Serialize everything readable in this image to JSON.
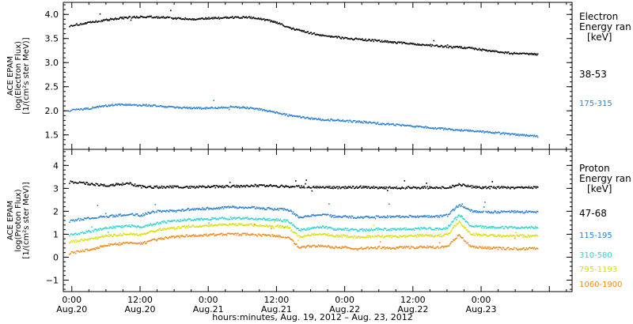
{
  "chart_data": [
    {
      "type": "scatter",
      "ylabel_lines": [
        "ACE EPAM",
        "log(Electron Flux)",
        "[1/(cm²s ster MeV)]"
      ],
      "ylim": [
        1.2,
        4.25
      ],
      "yticks": [
        1.5,
        2.0,
        2.5,
        3.0,
        3.5,
        4.0
      ],
      "ytick_labels": [
        "1.5",
        "2.0",
        "2.5",
        "3.0",
        "3.5",
        "4.0"
      ],
      "legend_title": [
        "Electron",
        "Energy ran",
        "[keV]"
      ],
      "series": [
        {
          "name": "38-53",
          "color": "#000000",
          "x": [
            -0.5,
            2,
            4,
            6,
            8,
            10,
            12,
            14,
            16,
            18,
            20,
            22,
            24,
            26,
            28,
            30,
            32,
            34,
            36,
            38,
            40,
            42,
            44,
            46,
            48,
            50,
            52,
            54,
            56,
            58,
            60,
            62,
            64,
            66,
            68,
            70,
            72,
            74,
            76,
            78,
            80,
            82
          ],
          "y": [
            3.78,
            3.82,
            3.86,
            3.9,
            3.93,
            3.95,
            3.96,
            3.96,
            3.95,
            3.93,
            3.92,
            3.91,
            3.93,
            3.94,
            3.95,
            3.95,
            3.94,
            3.9,
            3.84,
            3.74,
            3.68,
            3.62,
            3.58,
            3.55,
            3.52,
            3.5,
            3.48,
            3.46,
            3.44,
            3.42,
            3.4,
            3.38,
            3.36,
            3.34,
            3.33,
            3.32,
            3.28,
            3.25,
            3.22,
            3.2,
            3.19,
            3.18
          ]
        },
        {
          "name": "175-315",
          "color": "#2a7fd4",
          "x": [
            -0.5,
            2,
            4,
            6,
            8,
            10,
            12,
            14,
            16,
            18,
            20,
            22,
            24,
            26,
            28,
            30,
            32,
            34,
            36,
            38,
            40,
            42,
            44,
            46,
            48,
            50,
            52,
            54,
            56,
            58,
            60,
            62,
            64,
            66,
            68,
            70,
            72,
            74,
            76,
            78,
            80,
            82
          ],
          "y": [
            2.02,
            2.05,
            2.08,
            2.12,
            2.14,
            2.14,
            2.13,
            2.12,
            2.1,
            2.08,
            2.07,
            2.06,
            2.07,
            2.08,
            2.09,
            2.08,
            2.06,
            2.02,
            1.97,
            1.92,
            1.88,
            1.85,
            1.83,
            1.82,
            1.8,
            1.79,
            1.77,
            1.75,
            1.73,
            1.71,
            1.69,
            1.67,
            1.65,
            1.63,
            1.61,
            1.6,
            1.58,
            1.56,
            1.54,
            1.52,
            1.5,
            1.48
          ]
        }
      ]
    },
    {
      "type": "scatter",
      "ylabel_lines": [
        "ACE EPAM",
        "log(Proton Flux)",
        "[1/(cm²s ster MeV)]"
      ],
      "ylim": [
        -1.5,
        4.7
      ],
      "yticks": [
        -1,
        0,
        1,
        2,
        3,
        4
      ],
      "ytick_labels": [
        "−1",
        "0",
        "1",
        "2",
        "3",
        "4"
      ],
      "legend_title": [
        "Proton",
        "Energy ran",
        "[keV]"
      ],
      "series": [
        {
          "name": "47-68",
          "color": "#000000",
          "x": [
            -0.5,
            2,
            4,
            6,
            8,
            10,
            12,
            14,
            16,
            18,
            20,
            22,
            24,
            26,
            28,
            30,
            32,
            34,
            36,
            38,
            40,
            42,
            44,
            46,
            48,
            50,
            52,
            54,
            56,
            58,
            60,
            62,
            64,
            66,
            68,
            70,
            72,
            74,
            76,
            78,
            80,
            82
          ],
          "y": [
            3.3,
            3.25,
            3.2,
            3.15,
            3.2,
            3.25,
            3.1,
            3.08,
            3.08,
            3.1,
            3.08,
            3.08,
            3.1,
            3.1,
            3.12,
            3.12,
            3.15,
            3.15,
            3.12,
            3.1,
            3.1,
            3.08,
            3.08,
            3.06,
            3.06,
            3.08,
            3.08,
            3.06,
            3.05,
            3.05,
            3.06,
            3.06,
            3.05,
            3.05,
            3.2,
            3.1,
            3.06,
            3.06,
            3.06,
            3.06,
            3.06,
            3.06
          ]
        },
        {
          "name": "115-195",
          "color": "#2a7fd4",
          "x": [
            -0.5,
            2,
            4,
            6,
            8,
            10,
            12,
            14,
            16,
            18,
            20,
            22,
            24,
            26,
            28,
            30,
            32,
            34,
            36,
            38,
            40,
            42,
            44,
            46,
            48,
            50,
            52,
            54,
            56,
            58,
            60,
            62,
            64,
            66,
            68,
            70,
            72,
            74,
            76,
            78,
            80,
            82
          ],
          "y": [
            1.6,
            1.7,
            1.75,
            1.8,
            1.85,
            1.9,
            1.85,
            2.0,
            2.05,
            2.05,
            2.1,
            2.12,
            2.15,
            2.18,
            2.2,
            2.2,
            2.18,
            2.15,
            2.12,
            2.1,
            1.75,
            1.85,
            1.9,
            1.8,
            1.8,
            1.75,
            1.78,
            1.8,
            1.78,
            1.8,
            1.8,
            1.82,
            1.8,
            1.85,
            2.3,
            2.05,
            2.02,
            2.0,
            2.0,
            2.0,
            2.0,
            2.0
          ]
        },
        {
          "name": "310-580",
          "color": "#2bd4cf",
          "x": [
            -0.5,
            2,
            4,
            6,
            8,
            10,
            12,
            14,
            16,
            18,
            20,
            22,
            24,
            26,
            28,
            30,
            32,
            34,
            36,
            38,
            40,
            42,
            44,
            46,
            48,
            50,
            52,
            54,
            56,
            58,
            60,
            62,
            64,
            66,
            68,
            70,
            72,
            74,
            76,
            78,
            80,
            82
          ],
          "y": [
            1.0,
            1.1,
            1.2,
            1.3,
            1.35,
            1.4,
            1.35,
            1.45,
            1.55,
            1.6,
            1.65,
            1.68,
            1.7,
            1.72,
            1.72,
            1.72,
            1.7,
            1.68,
            1.65,
            1.6,
            1.2,
            1.3,
            1.35,
            1.25,
            1.25,
            1.2,
            1.22,
            1.25,
            1.22,
            1.25,
            1.25,
            1.28,
            1.25,
            1.3,
            1.9,
            1.4,
            1.35,
            1.32,
            1.32,
            1.32,
            1.32,
            1.32
          ]
        },
        {
          "name": "795-1193",
          "color": "#d8e000",
          "x": [
            -0.5,
            2,
            4,
            6,
            8,
            10,
            12,
            14,
            16,
            18,
            20,
            22,
            24,
            26,
            28,
            30,
            32,
            34,
            36,
            38,
            40,
            42,
            44,
            46,
            48,
            50,
            52,
            54,
            56,
            58,
            60,
            62,
            64,
            66,
            68,
            70,
            72,
            74,
            76,
            78,
            80,
            82
          ],
          "y": [
            0.7,
            0.78,
            0.85,
            0.95,
            1.0,
            1.05,
            1.0,
            1.15,
            1.25,
            1.3,
            1.35,
            1.38,
            1.42,
            1.45,
            1.45,
            1.45,
            1.42,
            1.4,
            1.38,
            1.32,
            0.9,
            1.0,
            1.05,
            0.95,
            0.95,
            0.9,
            0.92,
            0.95,
            0.92,
            0.95,
            0.95,
            0.98,
            0.95,
            1.0,
            1.6,
            1.05,
            1.0,
            0.98,
            0.95,
            0.95,
            0.95,
            0.95
          ]
        },
        {
          "name": "1060-1900",
          "color": "#f08a1a",
          "x": [
            -0.5,
            2,
            4,
            6,
            8,
            10,
            12,
            14,
            16,
            18,
            20,
            22,
            24,
            26,
            28,
            30,
            32,
            34,
            36,
            38,
            40,
            42,
            44,
            46,
            48,
            50,
            52,
            54,
            56,
            58,
            60,
            62,
            64,
            66,
            68,
            70,
            72,
            74,
            76,
            78,
            80,
            82
          ],
          "y": [
            0.2,
            0.3,
            0.4,
            0.55,
            0.6,
            0.65,
            0.6,
            0.75,
            0.85,
            0.9,
            0.95,
            0.98,
            1.0,
            1.02,
            1.02,
            1.02,
            1.0,
            0.98,
            0.95,
            0.9,
            0.45,
            0.5,
            0.55,
            0.45,
            0.45,
            0.4,
            0.42,
            0.45,
            0.42,
            0.45,
            0.45,
            0.48,
            0.45,
            0.5,
            1.0,
            0.5,
            0.45,
            0.42,
            0.4,
            0.4,
            0.4,
            0.4
          ]
        }
      ]
    }
  ],
  "x_axis": {
    "xlim": [
      -1.5,
      88
    ],
    "major_ticks": [
      0,
      12,
      24,
      36,
      48,
      60,
      72,
      84
    ],
    "major_labels": [
      [
        "0:00",
        "Aug.20"
      ],
      [
        "12:00",
        "Aug.20"
      ],
      [
        "0:00",
        "Aug.21"
      ],
      [
        "12:00",
        "Aug.21"
      ],
      [
        "0:00",
        "Aug.22"
      ],
      [
        "12:00",
        "Aug.22"
      ],
      [
        "0:00",
        "Aug.23"
      ],
      [
        "",
        ""
      ]
    ],
    "minor_step": 3,
    "xlabel": "hours:minutes, Aug. 19, 2012 – Aug. 23, 2012"
  }
}
